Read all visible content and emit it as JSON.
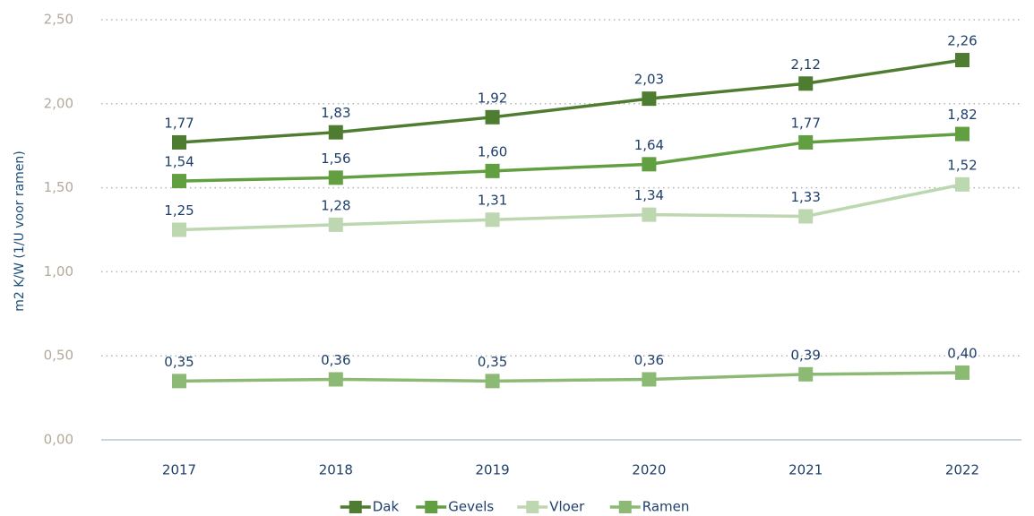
{
  "chart_data": {
    "type": "line",
    "y_axis_label": "m2 K/W (1/U voor ramen)",
    "categories": [
      "2017",
      "2018",
      "2019",
      "2020",
      "2021",
      "2022"
    ],
    "series": [
      {
        "name": "Dak",
        "color": "#4e7d32",
        "values": [
          1.77,
          1.83,
          1.92,
          2.03,
          2.12,
          2.26
        ],
        "value_labels": [
          "1,77",
          "1,83",
          "1,92",
          "2,03",
          "2,12",
          "2,26"
        ]
      },
      {
        "name": "Gevels",
        "color": "#629f40",
        "values": [
          1.54,
          1.56,
          1.6,
          1.64,
          1.77,
          1.82
        ],
        "value_labels": [
          "1,54",
          "1,56",
          "1,60",
          "1,64",
          "1,77",
          "1,82"
        ]
      },
      {
        "name": "Vloer",
        "color": "#bdd7b1",
        "values": [
          1.25,
          1.28,
          1.31,
          1.34,
          1.33,
          1.52
        ],
        "value_labels": [
          "1,25",
          "1,28",
          "1,31",
          "1,34",
          "1,33",
          "1,52"
        ]
      },
      {
        "name": "Ramen",
        "color": "#8cba74",
        "values": [
          0.35,
          0.36,
          0.35,
          0.36,
          0.39,
          0.4
        ],
        "value_labels": [
          "0,35",
          "0,36",
          "0,35",
          "0,36",
          "0,39",
          "0,40"
        ]
      }
    ],
    "ylim": [
      0,
      2.5
    ],
    "yticks": [
      {
        "value": 0,
        "label": "0,00"
      },
      {
        "value": 0.5,
        "label": "0,50"
      },
      {
        "value": 1,
        "label": "1,00"
      },
      {
        "value": 1.5,
        "label": "1,50"
      },
      {
        "value": 2,
        "label": "2,00"
      },
      {
        "value": 2.5,
        "label": "2,50"
      }
    ],
    "grid": true,
    "legend": "bottom"
  }
}
